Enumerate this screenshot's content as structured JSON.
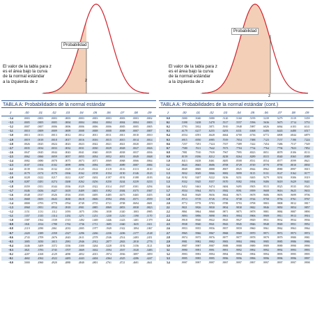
{
  "left": {
    "caption": "El valor de la tabla para z\nes el área bajo la curva\nde la normal estándar\na la izquierda de z",
    "prob_label": "Probabilidad",
    "z_label": "z",
    "title": "TABLA  A:  Probabilidades de la normal estándar",
    "headers": [
      "z",
      ".00",
      ".01",
      ".02",
      ".03",
      ".04",
      ".05",
      ".06",
      ".07",
      ".08",
      ".09"
    ],
    "rows": [
      [
        "−3.4",
        ".0003",
        ".0003",
        ".0003",
        ".0003",
        ".0003",
        ".0003",
        ".0003",
        ".0003",
        ".0003",
        ".0002"
      ],
      [
        "−3.3",
        ".0005",
        ".0005",
        ".0005",
        ".0004",
        ".0004",
        ".0004",
        ".0004",
        ".0004",
        ".0004",
        ".0003"
      ],
      [
        "−3.2",
        ".0007",
        ".0007",
        ".0006",
        ".0006",
        ".0006",
        ".0006",
        ".0006",
        ".0005",
        ".0005",
        ".0005"
      ],
      [
        "−3.1",
        ".0010",
        ".0009",
        ".0009",
        ".0009",
        ".0008",
        ".0008",
        ".0008",
        ".0008",
        ".0007",
        ".0007"
      ],
      [
        "−3.0",
        ".0013",
        ".0013",
        ".0013",
        ".0012",
        ".0012",
        ".0011",
        ".0011",
        ".0011",
        ".0010",
        ".0010"
      ],
      [
        "−2.9",
        ".0019",
        ".0018",
        ".0018",
        ".0017",
        ".0016",
        ".0016",
        ".0015",
        ".0015",
        ".0014",
        ".0014"
      ],
      [
        "−2.8",
        ".0026",
        ".0025",
        ".0024",
        ".0023",
        ".0023",
        ".0022",
        ".0021",
        ".0021",
        ".0020",
        ".0019"
      ],
      [
        "−2.7",
        ".0035",
        ".0034",
        ".0033",
        ".0032",
        ".0031",
        ".0030",
        ".0029",
        ".0028",
        ".0027",
        ".0026"
      ],
      [
        "−2.6",
        ".0047",
        ".0045",
        ".0044",
        ".0043",
        ".0041",
        ".0040",
        ".0039",
        ".0038",
        ".0037",
        ".0036"
      ],
      [
        "−2.5",
        ".0062",
        ".0060",
        ".0059",
        ".0057",
        ".0055",
        ".0054",
        ".0052",
        ".0051",
        ".0049",
        ".0048"
      ],
      [
        "−2.4",
        ".0082",
        ".0080",
        ".0078",
        ".0075",
        ".0073",
        ".0071",
        ".0069",
        ".0068",
        ".0066",
        ".0064"
      ],
      [
        "−2.3",
        ".0107",
        ".0104",
        ".0102",
        ".0099",
        ".0096",
        ".0094",
        ".0091",
        ".0089",
        ".0087",
        ".0084"
      ],
      [
        "−2.2",
        ".0139",
        ".0136",
        ".0132",
        ".0129",
        ".0125",
        ".0122",
        ".0119",
        ".0116",
        ".0113",
        ".0110"
      ],
      [
        "−2.1",
        ".0179",
        ".0174",
        ".0170",
        ".0166",
        ".0162",
        ".0158",
        ".0154",
        ".0150",
        ".0146",
        ".0143"
      ],
      [
        "−2.0",
        ".0228",
        ".0222",
        ".0217",
        ".0212",
        ".0207",
        ".0202",
        ".0197",
        ".0192",
        ".0188",
        ".0183"
      ],
      [
        "−1.9",
        ".0287",
        ".0281",
        ".0274",
        ".0268",
        ".0262",
        ".0256",
        ".0250",
        ".0244",
        ".0239",
        ".0233"
      ],
      [
        "−1.8",
        ".0359",
        ".0351",
        ".0344",
        ".0336",
        ".0329",
        ".0322",
        ".0314",
        ".0307",
        ".0301",
        ".0294"
      ],
      [
        "−1.7",
        ".0446",
        ".0436",
        ".0427",
        ".0418",
        ".0409",
        ".0401",
        ".0392",
        ".0384",
        ".0375",
        ".0367"
      ],
      [
        "−1.6",
        ".0548",
        ".0537",
        ".0526",
        ".0516",
        ".0505",
        ".0495",
        ".0485",
        ".0475",
        ".0465",
        ".0455"
      ],
      [
        "−1.5",
        ".0668",
        ".0655",
        ".0643",
        ".0630",
        ".0618",
        ".0606",
        ".0594",
        ".0582",
        ".0571",
        ".0559"
      ],
      [
        "−1.4",
        ".0808",
        ".0793",
        ".0778",
        ".0764",
        ".0749",
        ".0735",
        ".0721",
        ".0708",
        ".0694",
        ".0681"
      ],
      [
        "−1.3",
        ".0968",
        ".0951",
        ".0934",
        ".0918",
        ".0901",
        ".0885",
        ".0869",
        ".0853",
        ".0838",
        ".0823"
      ],
      [
        "−1.2",
        ".1151",
        ".1131",
        ".1112",
        ".1093",
        ".1075",
        ".1056",
        ".1038",
        ".1020",
        ".1003",
        ".0985"
      ],
      [
        "−1.1",
        ".1357",
        ".1335",
        ".1314",
        ".1292",
        ".1271",
        ".1251",
        ".1230",
        ".1210",
        ".1190",
        ".1170"
      ],
      [
        "−1.0",
        ".1587",
        ".1562",
        ".1539",
        ".1515",
        ".1492",
        ".1469",
        ".1446",
        ".1423",
        ".1401",
        ".1379"
      ],
      [
        "−0.9",
        ".1841",
        ".1814",
        ".1788",
        ".1762",
        ".1736",
        ".1711",
        ".1685",
        ".1660",
        ".1635",
        ".1611"
      ],
      [
        "−0.8",
        ".2119",
        ".2090",
        ".2061",
        ".2033",
        ".2005",
        ".1977",
        ".1949",
        ".1922",
        ".1894",
        ".1867"
      ],
      [
        "−0.7",
        ".2420",
        ".2389",
        ".2358",
        ".2327",
        ".2296",
        ".2266",
        ".2236",
        ".2206",
        ".2177",
        ".2148"
      ],
      [
        "−0.6",
        ".2743",
        ".2709",
        ".2676",
        ".2643",
        ".2611",
        ".2578",
        ".2546",
        ".2514",
        ".2483",
        ".2451"
      ],
      [
        "−0.5",
        ".3085",
        ".3050",
        ".3015",
        ".2981",
        ".2946",
        ".2912",
        ".2877",
        ".2843",
        ".2810",
        ".2776"
      ],
      [
        "−0.4",
        ".3446",
        ".3409",
        ".3372",
        ".3336",
        ".3300",
        ".3264",
        ".3228",
        ".3192",
        ".3156",
        ".3121"
      ],
      [
        "−0.3",
        ".3821",
        ".3783",
        ".3745",
        ".3707",
        ".3669",
        ".3632",
        ".3594",
        ".3557",
        ".3520",
        ".3483"
      ],
      [
        "−0.2",
        ".4207",
        ".4168",
        ".4129",
        ".4090",
        ".4052",
        ".4013",
        ".3974",
        ".3936",
        ".3897",
        ".3859"
      ],
      [
        "−0.1",
        ".4602",
        ".4562",
        ".4522",
        ".4483",
        ".4443",
        ".4404",
        ".4364",
        ".4325",
        ".4286",
        ".4247"
      ],
      [
        "−0.0",
        ".5000",
        ".4960",
        ".4920",
        ".4880",
        ".4840",
        ".4801",
        ".4761",
        ".4721",
        ".4681",
        ".4641"
      ]
    ]
  },
  "right": {
    "caption": "El valor de la tabla para z\nes el área bajo la curva\nde la normal estándar\na  la  izquierda  de  z",
    "prob_label": "Probabilidad",
    "z_label": "z",
    "title": "TABLA  A:  Probabilidades  de  la  normal  estándar  (cont.)",
    "headers": [
      "z",
      ".00",
      ".01",
      ".02",
      ".03",
      ".04",
      ".05",
      ".06",
      ".07",
      ".08",
      ".09"
    ],
    "rows": [
      [
        "0.0",
        ".5000",
        ".5040",
        ".5080",
        ".5120",
        ".5160",
        ".5199",
        ".5239",
        ".5279",
        ".5319",
        ".5359"
      ],
      [
        "0.1",
        ".5398",
        ".5438",
        ".5478",
        ".5517",
        ".5557",
        ".5596",
        ".5636",
        ".5675",
        ".5714",
        ".5753"
      ],
      [
        "0.2",
        ".5793",
        ".5832",
        ".5871",
        ".5910",
        ".5948",
        ".5987",
        ".6026",
        ".6064",
        ".6103",
        ".6141"
      ],
      [
        "0.3",
        ".6179",
        ".6217",
        ".6255",
        ".6293",
        ".6331",
        ".6368",
        ".6406",
        ".6443",
        ".6480",
        ".6517"
      ],
      [
        "0.4",
        ".6554",
        ".6591",
        ".6628",
        ".6664",
        ".6700",
        ".6736",
        ".6772",
        ".6808",
        ".6844",
        ".6879"
      ],
      [
        "0.5",
        ".6915",
        ".6950",
        ".6985",
        ".7019",
        ".7054",
        ".7088",
        ".7123",
        ".7157",
        ".7190",
        ".7224"
      ],
      [
        "0.6",
        ".7257",
        ".7291",
        ".7324",
        ".7357",
        ".7389",
        ".7422",
        ".7454",
        ".7486",
        ".7517",
        ".7549"
      ],
      [
        "0.7",
        ".7580",
        ".7611",
        ".7642",
        ".7673",
        ".7704",
        ".7734",
        ".7764",
        ".7794",
        ".7823",
        ".7852"
      ],
      [
        "0.8",
        ".7881",
        ".7910",
        ".7939",
        ".7967",
        ".7995",
        ".8023",
        ".8051",
        ".8078",
        ".8106",
        ".8133"
      ],
      [
        "0.9",
        ".8159",
        ".8186",
        ".8212",
        ".8238",
        ".8264",
        ".8289",
        ".8315",
        ".8340",
        ".8365",
        ".8389"
      ],
      [
        "1.0",
        ".8413",
        ".8438",
        ".8461",
        ".8485",
        ".8508",
        ".8531",
        ".8554",
        ".8577",
        ".8599",
        ".8621"
      ],
      [
        "1.1",
        ".8643",
        ".8665",
        ".8686",
        ".8708",
        ".8729",
        ".8749",
        ".8770",
        ".8790",
        ".8810",
        ".8830"
      ],
      [
        "1.2",
        ".8849",
        ".8869",
        ".8888",
        ".8907",
        ".8925",
        ".8944",
        ".8962",
        ".8980",
        ".8997",
        ".9015"
      ],
      [
        "1.3",
        ".9032",
        ".9049",
        ".9066",
        ".9082",
        ".9099",
        ".9115",
        ".9131",
        ".9147",
        ".9162",
        ".9177"
      ],
      [
        "1.4",
        ".9192",
        ".9207",
        ".9222",
        ".9236",
        ".9251",
        ".9265",
        ".9279",
        ".9292",
        ".9306",
        ".9319"
      ],
      [
        "1.5",
        ".9332",
        ".9345",
        ".9357",
        ".9370",
        ".9382",
        ".9394",
        ".9406",
        ".9418",
        ".9429",
        ".9441"
      ],
      [
        "1.6",
        ".9452",
        ".9463",
        ".9474",
        ".9484",
        ".9495",
        ".9505",
        ".9515",
        ".9525",
        ".9535",
        ".9545"
      ],
      [
        "1.7",
        ".9554",
        ".9564",
        ".9573",
        ".9582",
        ".9591",
        ".9599",
        ".9608",
        ".9616",
        ".9625",
        ".9633"
      ],
      [
        "1.8",
        ".9641",
        ".9649",
        ".9656",
        ".9664",
        ".9671",
        ".9678",
        ".9686",
        ".9693",
        ".9699",
        ".9706"
      ],
      [
        "1.9",
        ".9713",
        ".9719",
        ".9726",
        ".9732",
        ".9738",
        ".9744",
        ".9750",
        ".9756",
        ".9761",
        ".9767"
      ],
      [
        "2.0",
        ".9772",
        ".9778",
        ".9783",
        ".9788",
        ".9793",
        ".9798",
        ".9803",
        ".9808",
        ".9812",
        ".9817"
      ],
      [
        "2.1",
        ".9821",
        ".9826",
        ".9830",
        ".9834",
        ".9838",
        ".9842",
        ".9846",
        ".9850",
        ".9854",
        ".9857"
      ],
      [
        "2.2",
        ".9861",
        ".9864",
        ".9868",
        ".9871",
        ".9875",
        ".9878",
        ".9881",
        ".9884",
        ".9887",
        ".9890"
      ],
      [
        "2.3",
        ".9893",
        ".9896",
        ".9898",
        ".9901",
        ".9904",
        ".9906",
        ".9909",
        ".9911",
        ".9913",
        ".9916"
      ],
      [
        "2.4",
        ".9918",
        ".9920",
        ".9922",
        ".9925",
        ".9927",
        ".9929",
        ".9931",
        ".9932",
        ".9934",
        ".9936"
      ],
      [
        "2.5",
        ".9938",
        ".9940",
        ".9941",
        ".9943",
        ".9945",
        ".9946",
        ".9948",
        ".9949",
        ".9951",
        ".9952"
      ],
      [
        "2.6",
        ".9953",
        ".9955",
        ".9956",
        ".9957",
        ".9959",
        ".9960",
        ".9961",
        ".9962",
        ".9963",
        ".9964"
      ],
      [
        "2.7",
        ".9965",
        ".9966",
        ".9967",
        ".9968",
        ".9969",
        ".9970",
        ".9971",
        ".9972",
        ".9973",
        ".9974"
      ],
      [
        "2.8",
        ".9974",
        ".9975",
        ".9976",
        ".9977",
        ".9977",
        ".9978",
        ".9979",
        ".9979",
        ".9980",
        ".9981"
      ],
      [
        "2.9",
        ".9981",
        ".9982",
        ".9982",
        ".9983",
        ".9984",
        ".9984",
        ".9985",
        ".9985",
        ".9986",
        ".9986"
      ],
      [
        "3.0",
        ".9987",
        ".9987",
        ".9987",
        ".9988",
        ".9988",
        ".9989",
        ".9989",
        ".9989",
        ".9990",
        ".9990"
      ],
      [
        "3.1",
        ".9990",
        ".9991",
        ".9991",
        ".9991",
        ".9992",
        ".9992",
        ".9992",
        ".9992",
        ".9993",
        ".9993"
      ],
      [
        "3.2",
        ".9993",
        ".9993",
        ".9994",
        ".9994",
        ".9994",
        ".9994",
        ".9994",
        ".9995",
        ".9995",
        ".9995"
      ],
      [
        "3.3",
        ".9995",
        ".9995",
        ".9995",
        ".9996",
        ".9996",
        ".9996",
        ".9996",
        ".9996",
        ".9996",
        ".9997"
      ],
      [
        "3.4",
        ".9997",
        ".9997",
        ".9997",
        ".9997",
        ".9997",
        ".9997",
        ".9997",
        ".9997",
        ".9997",
        ".9998"
      ]
    ]
  },
  "colors": {
    "curve": "#d0202a",
    "fill": "#f3cfb8",
    "title_line": "#2a5a9a",
    "shade": "#d8e4f1"
  }
}
